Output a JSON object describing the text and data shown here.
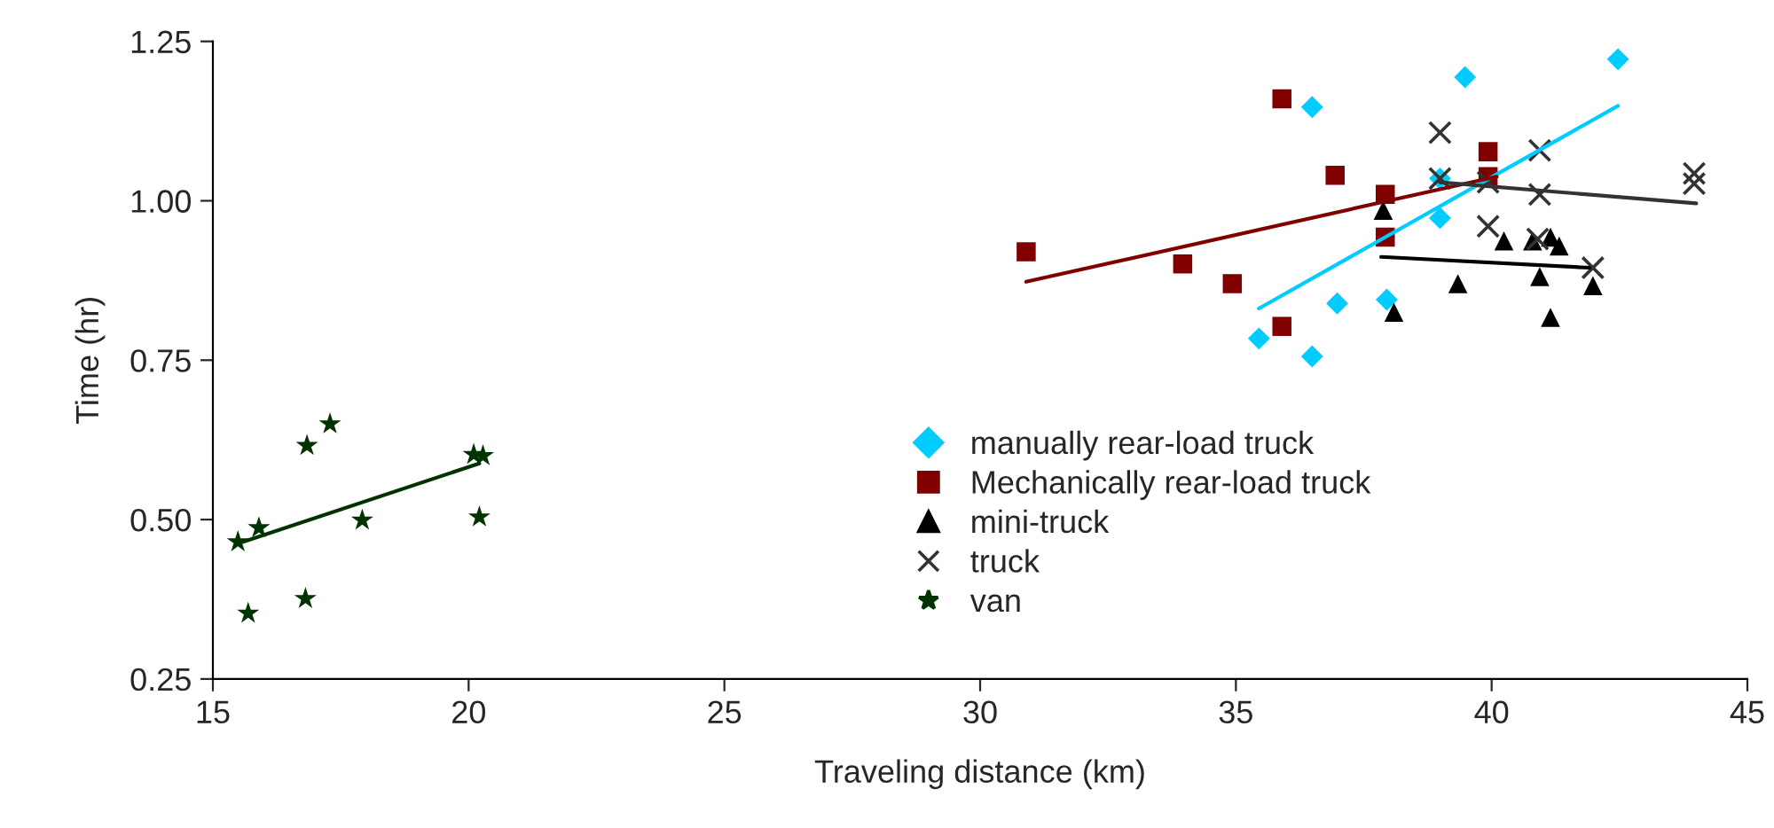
{
  "chart_data": {
    "type": "scatter",
    "xlabel": "Traveling distance (km)",
    "ylabel": "Time (hr)",
    "xlim": [
      15,
      45
    ],
    "xticks": [
      15,
      20,
      25,
      30,
      35,
      40,
      45
    ],
    "ylim": [
      0.25,
      1.25
    ],
    "yticks": [
      {
        "value": 0.25,
        "label": "0.25"
      },
      {
        "value": 0.5,
        "label": "0.50"
      },
      {
        "value": 0.75,
        "label": "0.75"
      },
      {
        "value": 1.0,
        "label": "1.00"
      },
      {
        "value": 1.25,
        "label": "1.25"
      }
    ],
    "grid": false,
    "legend": "bottom",
    "series": [
      {
        "name": "manually rear-load truck",
        "color": "#00ccff",
        "marker": "diamond",
        "x": [
          36.49,
          39.48,
          42.47,
          38.99,
          38.99,
          36.98,
          37.95,
          35.45,
          36.49
        ],
        "values": [
          1.147,
          1.194,
          1.222,
          1.035,
          0.973,
          0.839,
          0.845,
          0.784,
          0.756
        ]
      },
      {
        "name": "Mechanically rear-load truck",
        "color": "#800000",
        "marker": "square",
        "x": [
          30.9,
          33.96,
          34.93,
          35.9,
          35.9,
          36.94,
          37.92,
          37.92,
          39.93,
          39.93
        ],
        "values": [
          0.92,
          0.901,
          0.87,
          1.16,
          0.803,
          1.04,
          1.01,
          0.943,
          1.077,
          1.038
        ]
      },
      {
        "name": "mini-truck",
        "color": "#000000",
        "marker": "triangle",
        "x": [
          37.88,
          38.09,
          39.34,
          40.24,
          40.8,
          41.15,
          41.32,
          40.94,
          41.15,
          41.98
        ],
        "values": [
          0.985,
          0.825,
          0.87,
          0.937,
          0.937,
          0.943,
          0.929,
          0.881,
          0.817,
          0.867
        ]
      },
      {
        "name": "truck",
        "color": "#333333",
        "marker": "cross",
        "x": [
          38.99,
          38.99,
          39.93,
          40.94,
          40.94,
          39.93,
          40.9,
          41.98,
          43.96,
          43.96
        ],
        "values": [
          1.107,
          1.035,
          1.029,
          1.079,
          1.01,
          0.96,
          0.94,
          0.895,
          1.043,
          1.027
        ]
      },
      {
        "name": "van",
        "color": "#003300",
        "marker": "star",
        "x": [
          15.49,
          15.9,
          15.69,
          16.84,
          17.29,
          16.81,
          17.92,
          20.1,
          20.28,
          20.21
        ],
        "values": [
          0.465,
          0.487,
          0.353,
          0.616,
          0.65,
          0.376,
          0.499,
          0.602,
          0.6,
          0.504
        ]
      },
      {
        "type": "line",
        "color": "#00ccff",
        "x": [
          35.45,
          42.47
        ],
        "values": [
          0.831,
          1.149
        ]
      },
      {
        "type": "line",
        "color": "#800000",
        "x": [
          30.9,
          40.1
        ],
        "values": [
          0.873,
          1.038
        ]
      },
      {
        "type": "line",
        "color": "#000000",
        "x": [
          37.84,
          41.91
        ],
        "values": [
          0.912,
          0.895
        ]
      },
      {
        "type": "line",
        "color": "#333333",
        "x": [
          38.99,
          44.0
        ],
        "values": [
          1.029,
          0.996
        ]
      },
      {
        "type": "line",
        "color": "#003300",
        "x": [
          15.59,
          20.21
        ],
        "values": [
          0.465,
          0.588
        ]
      }
    ]
  }
}
